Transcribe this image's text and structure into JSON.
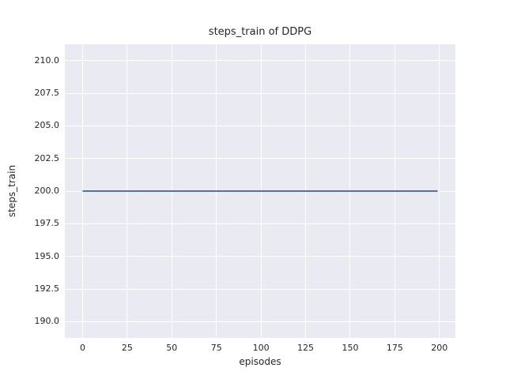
{
  "chart_data": {
    "type": "line",
    "title": "steps_train of DDPG",
    "xlabel": "episodes",
    "ylabel": "steps_train",
    "series": [
      {
        "name": "steps_train",
        "points": [
          [
            0,
            200.0
          ],
          [
            199,
            200.0
          ]
        ],
        "description": "constant horizontal line at y=200 spanning episodes 0 to 199",
        "color": "#4c72b0",
        "line_width": 2
      }
    ],
    "x_ticks": [
      0,
      25,
      50,
      75,
      100,
      125,
      150,
      175,
      200
    ],
    "x_tick_labels": [
      "0",
      "25",
      "50",
      "75",
      "100",
      "125",
      "150",
      "175",
      "200"
    ],
    "y_ticks": [
      190.0,
      192.5,
      195.0,
      197.5,
      200.0,
      202.5,
      205.0,
      207.5,
      210.0
    ],
    "y_tick_labels": [
      "190.0",
      "192.5",
      "195.0",
      "197.5",
      "200.0",
      "202.5",
      "205.0",
      "207.5",
      "210.0"
    ],
    "xlim": [
      -9.95,
      208.95
    ],
    "ylim": [
      188.75,
      211.25
    ],
    "grid": true,
    "legend": false,
    "style": {
      "plot_background": "#eaeaf2",
      "grid_color": "#ffffff",
      "figure_background": "#ffffff",
      "text_color": "#262626",
      "line_color": "#4c72b0"
    }
  }
}
